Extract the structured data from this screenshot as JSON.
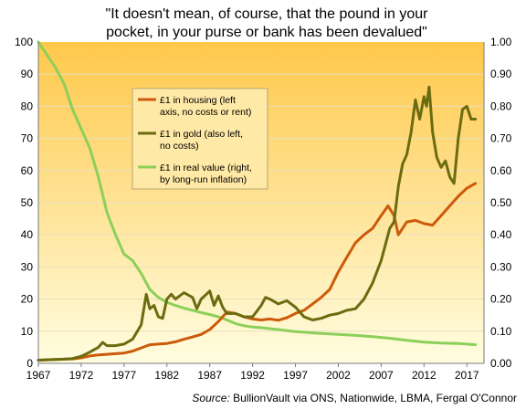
{
  "chart_data": {
    "type": "line",
    "title_lines": [
      "\"It doesn't mean, of course, that the pound in your",
      "pocket, in your purse or bank has been devalued\""
    ],
    "source_label": "Source:",
    "source_text": "BullionVault via ONS, Nationwide, LBMA, Fergal O'Connor",
    "x_ticks": [
      "1967",
      "1972",
      "1977",
      "1982",
      "1987",
      "1992",
      "1997",
      "2002",
      "2007",
      "2012",
      "2017"
    ],
    "xlim": [
      1967,
      2019
    ],
    "left_axis": {
      "ylim": [
        0,
        100
      ],
      "ticks": [
        "0",
        "10",
        "20",
        "30",
        "40",
        "50",
        "60",
        "70",
        "80",
        "90",
        "100"
      ]
    },
    "right_axis": {
      "ylim": [
        0,
        1
      ],
      "ticks": [
        "0.00",
        "0.10",
        "0.20",
        "0.30",
        "0.40",
        "0.50",
        "0.60",
        "0.70",
        "0.80",
        "0.90",
        "1.00"
      ]
    },
    "grid": "horizontal",
    "legend_position": "upper-left-center",
    "background": {
      "top_color": "#ffc84a",
      "bottom_color": "#fffde0"
    },
    "series": [
      {
        "name": "£1 in housing (left axis, no costs or rent)",
        "legend_lines": [
          "£1 in housing (left",
          "axis, no costs or rent)"
        ],
        "axis": "left",
        "color": "#cc5a0a",
        "x": [
          1967,
          1968,
          1969,
          1970,
          1971,
          1972,
          1973,
          1974,
          1975,
          1976,
          1977,
          1978,
          1979,
          1980,
          1981,
          1982,
          1983,
          1984,
          1985,
          1986,
          1987,
          1988,
          1989,
          1990,
          1991,
          1992,
          1993,
          1994,
          1995,
          1996,
          1997,
          1998,
          1999,
          2000,
          2001,
          2002,
          2003,
          2004,
          2005,
          2006,
          2007,
          2007.8,
          2008.5,
          2009,
          2009.5,
          2010,
          2011,
          2012,
          2013,
          2014,
          2015,
          2016,
          2017,
          2018
        ],
        "values": [
          1,
          1.1,
          1.2,
          1.3,
          1.4,
          1.7,
          2.3,
          2.6,
          2.8,
          3.0,
          3.2,
          3.8,
          4.8,
          5.8,
          6.0,
          6.2,
          6.7,
          7.5,
          8.2,
          9.0,
          10.5,
          13.0,
          16.0,
          15.5,
          14.5,
          13.8,
          13.5,
          13.8,
          13.4,
          14.2,
          15.5,
          16.5,
          18.5,
          20.5,
          23.0,
          28.5,
          33.0,
          37.5,
          40.0,
          42.0,
          46.0,
          49.0,
          46.0,
          40.0,
          42.0,
          44.0,
          44.5,
          43.5,
          43.0,
          46.0,
          49.0,
          52.0,
          54.5,
          56.0
        ]
      },
      {
        "name": "£1 in gold (also left, no costs)",
        "legend_lines": [
          "£1 in gold (also left,",
          "no costs)"
        ],
        "axis": "left",
        "color": "#6b6b10",
        "x": [
          1967,
          1968,
          1969,
          1970,
          1971,
          1972,
          1973,
          1974,
          1974.5,
          1975,
          1976,
          1977,
          1978,
          1979,
          1979.6,
          1980,
          1980.5,
          1981,
          1981.5,
          1982,
          1982.5,
          1983,
          1984,
          1985,
          1985.5,
          1986,
          1987,
          1987.5,
          1988,
          1988.5,
          1989,
          1990,
          1991,
          1992,
          1993,
          1993.5,
          1994,
          1995,
          1996,
          1997,
          1998,
          1999,
          2000,
          2001,
          2002,
          2003,
          2004,
          2005,
          2006,
          2007,
          2008,
          2008.5,
          2009,
          2009.5,
          2010,
          2010.5,
          2011,
          2011.5,
          2012,
          2012.3,
          2012.6,
          2013,
          2013.5,
          2014,
          2014.5,
          2015,
          2015.5,
          2016,
          2016.5,
          2017,
          2017.5,
          2018
        ],
        "values": [
          1,
          1.1,
          1.2,
          1.3,
          1.5,
          2.2,
          3.5,
          5.0,
          6.5,
          5.5,
          5.5,
          6.0,
          7.5,
          12.0,
          21.5,
          17.0,
          18.0,
          14.5,
          14.0,
          20.0,
          21.5,
          20.0,
          22.0,
          20.5,
          17.0,
          20.0,
          22.5,
          18.0,
          21.0,
          17.5,
          15.5,
          15.5,
          14.5,
          14.5,
          18.0,
          20.5,
          20.0,
          18.5,
          19.5,
          17.5,
          14.5,
          13.5,
          14.0,
          15.0,
          15.5,
          16.5,
          17.0,
          20.0,
          25.0,
          32.0,
          42.0,
          44.0,
          55.0,
          62.0,
          65.0,
          72.0,
          82.0,
          76.0,
          83.0,
          80.0,
          86.0,
          72.0,
          64.0,
          61.0,
          63.0,
          58.0,
          56.0,
          70.0,
          79.0,
          80.0,
          76.0,
          76.0
        ]
      },
      {
        "name": "£1 in real value (right, by long-run inflation)",
        "legend_lines": [
          "£1 in real value (right,",
          "by long-run inflation)"
        ],
        "axis": "right",
        "color": "#8ccf5a",
        "x": [
          1967,
          1968,
          1969,
          1970,
          1971,
          1972,
          1973,
          1974,
          1975,
          1976,
          1977,
          1978,
          1979,
          1980,
          1981,
          1982,
          1983,
          1984,
          1985,
          1986,
          1987,
          1988,
          1989,
          1990,
          1991,
          1992,
          1993,
          1994,
          1995,
          1996,
          1997,
          1998,
          1999,
          2000,
          2002,
          2004,
          2006,
          2008,
          2010,
          2012,
          2014,
          2016,
          2018
        ],
        "values": [
          1.0,
          0.96,
          0.92,
          0.87,
          0.79,
          0.73,
          0.67,
          0.58,
          0.47,
          0.4,
          0.34,
          0.32,
          0.28,
          0.23,
          0.205,
          0.19,
          0.18,
          0.172,
          0.165,
          0.158,
          0.152,
          0.145,
          0.135,
          0.124,
          0.117,
          0.113,
          0.111,
          0.108,
          0.105,
          0.102,
          0.099,
          0.097,
          0.095,
          0.093,
          0.09,
          0.087,
          0.083,
          0.078,
          0.072,
          0.066,
          0.063,
          0.062,
          0.058
        ]
      }
    ]
  }
}
